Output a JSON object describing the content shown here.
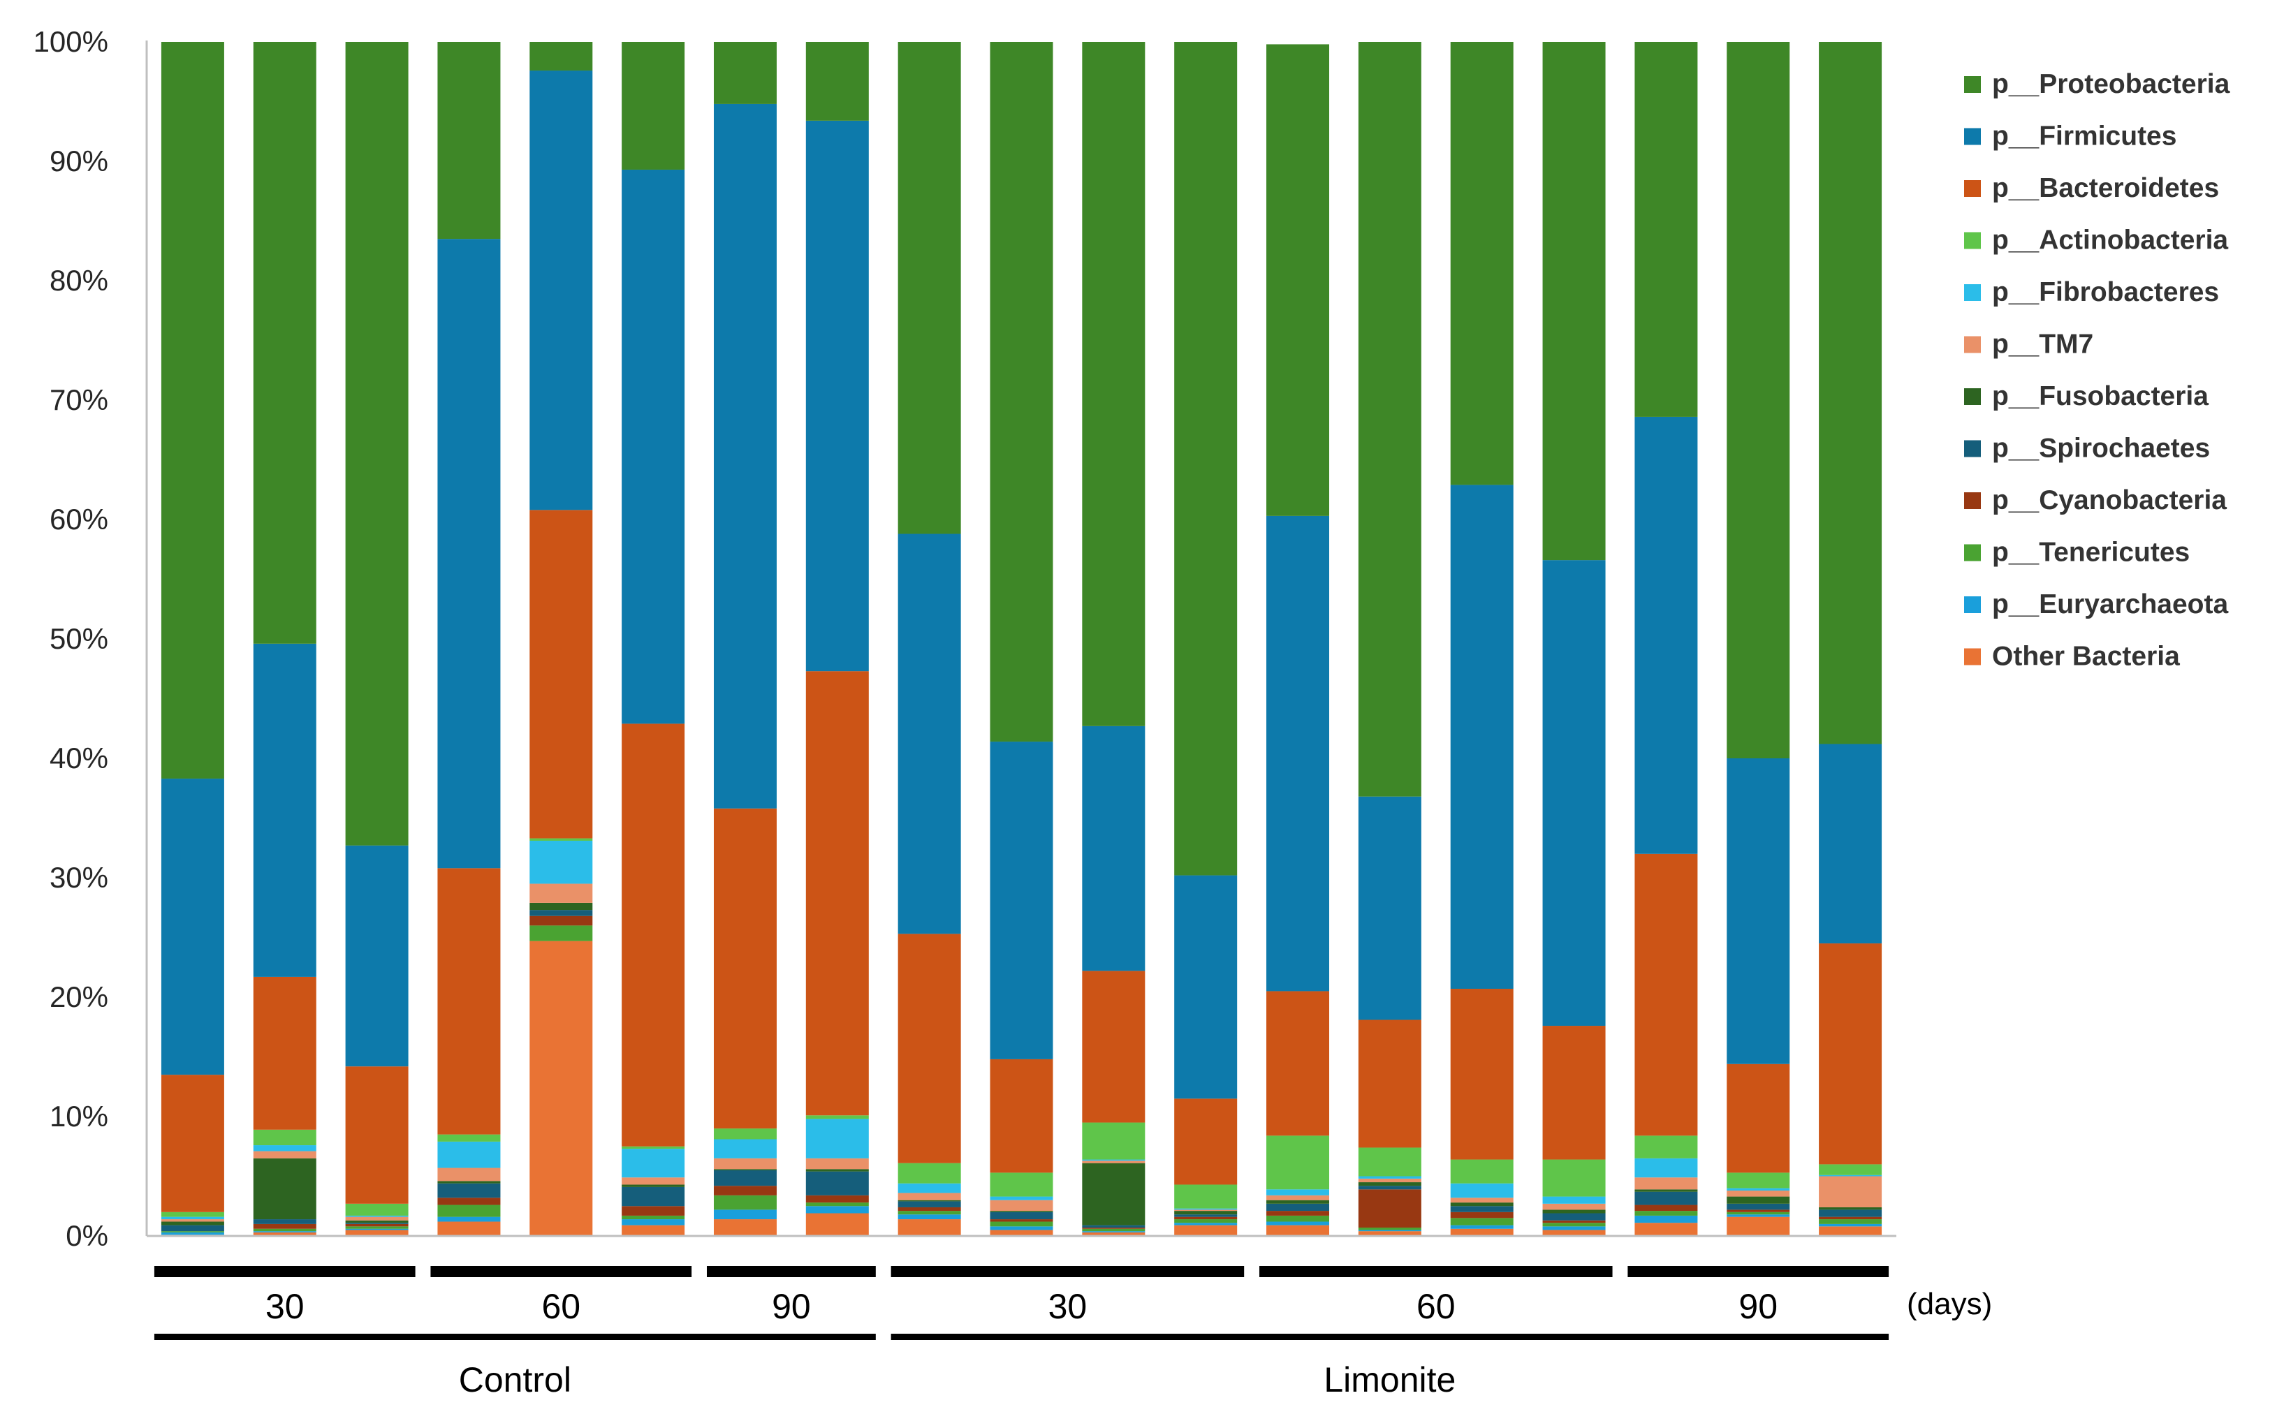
{
  "chart_data": {
    "type": "bar",
    "stacked": true,
    "normalized": true,
    "ylim": [
      0,
      100
    ],
    "yticks": [
      "0%",
      "10%",
      "20%",
      "30%",
      "40%",
      "50%",
      "60%",
      "70%",
      "80%",
      "90%",
      "100%"
    ],
    "legend_position": "right",
    "series": [
      {
        "name": "p__Proteobacteria",
        "color": "#3e8727"
      },
      {
        "name": "p__Firmicutes",
        "color": "#0d7aab"
      },
      {
        "name": "p__Bacteroidetes",
        "color": "#cc5416"
      },
      {
        "name": "p__Actinobacteria",
        "color": "#5fc54a"
      },
      {
        "name": "p__Fibrobacteres",
        "color": "#2bbde9"
      },
      {
        "name": "p__TM7",
        "color": "#ea9168"
      },
      {
        "name": "p__Fusobacteria",
        "color": "#2d6421"
      },
      {
        "name": "p__Spirochaetes",
        "color": "#155e7b"
      },
      {
        "name": "p__Cyanobacteria",
        "color": "#983812"
      },
      {
        "name": "p__Tenericutes",
        "color": "#4aa332"
      },
      {
        "name": "p__Euryarchaeota",
        "color": "#1a9fdb"
      },
      {
        "name": "Other Bacteria",
        "color": "#e97334"
      }
    ],
    "bars": [
      {
        "other": 0.1,
        "eury": 0.2,
        "tene": 0.1,
        "cyano": 0,
        "spiro": 0.5,
        "fuso": 0.3,
        "tm7": 0.2,
        "fibro": 0.2,
        "actino": 0.4,
        "bact": 11.5,
        "firm": 24.8,
        "proteo": 61.7
      },
      {
        "other": 0.3,
        "eury": 0.1,
        "tene": 0.2,
        "cyano": 0.4,
        "spiro": 0.4,
        "fuso": 5.1,
        "tm7": 0.6,
        "fibro": 0.5,
        "actino": 1.3,
        "bact": 12.8,
        "firm": 27.9,
        "proteo": 50.4
      },
      {
        "other": 0.5,
        "eury": 0.1,
        "tene": 0.2,
        "cyano": 0.2,
        "spiro": 0.1,
        "fuso": 0.2,
        "tm7": 0.3,
        "fibro": 0.1,
        "actino": 1,
        "bact": 11.5,
        "firm": 18.5,
        "proteo": 67.3
      },
      {
        "other": 1.2,
        "eury": 0.4,
        "tene": 1,
        "cyano": 0.6,
        "spiro": 1.2,
        "fuso": 0.2,
        "tm7": 1.1,
        "fibro": 2.2,
        "actino": 0.6,
        "bact": 22.3,
        "firm": 52.7,
        "proteo": 16.5
      },
      {
        "other": 24.7,
        "eury": 0,
        "tene": 1.3,
        "cyano": 0.8,
        "spiro": 0.5,
        "fuso": 0.6,
        "tm7": 1.6,
        "fibro": 3.6,
        "actino": 0.2,
        "bact": 27.5,
        "firm": 36.8,
        "proteo": 2.4
      },
      {
        "other": 0.9,
        "eury": 0.5,
        "tene": 0.3,
        "cyano": 0.8,
        "spiro": 1.6,
        "fuso": 0.2,
        "tm7": 0.6,
        "fibro": 2.4,
        "actino": 0.2,
        "bact": 35.4,
        "firm": 46.4,
        "proteo": 10.7
      },
      {
        "other": 1.4,
        "eury": 0.8,
        "tene": 1.2,
        "cyano": 0.8,
        "spiro": 1.3,
        "fuso": 0.1,
        "tm7": 0.9,
        "fibro": 1.6,
        "actino": 0.9,
        "bact": 26.8,
        "firm": 59,
        "proteo": 5.2
      },
      {
        "other": 1.9,
        "eury": 0.6,
        "tene": 0.3,
        "cyano": 0.6,
        "spiro": 2,
        "fuso": 0.2,
        "tm7": 0.9,
        "fibro": 3.3,
        "actino": 0.3,
        "bact": 37.2,
        "firm": 46.1,
        "proteo": 6.6
      },
      {
        "other": 1.4,
        "eury": 0.4,
        "tene": 0.3,
        "cyano": 0.3,
        "spiro": 0.5,
        "fuso": 0.1,
        "tm7": 0.6,
        "fibro": 0.8,
        "actino": 1.7,
        "bact": 19.2,
        "firm": 33.5,
        "proteo": 41.2
      },
      {
        "other": 0.5,
        "eury": 0.3,
        "tene": 0.4,
        "cyano": 0.2,
        "spiro": 0.6,
        "fuso": 0.1,
        "tm7": 0.9,
        "fibro": 0.3,
        "actino": 2,
        "bact": 9.5,
        "firm": 26.6,
        "proteo": 58.6
      },
      {
        "other": 0.3,
        "eury": 0.1,
        "tene": 0.2,
        "cyano": 0.1,
        "spiro": 0.2,
        "fuso": 5.2,
        "tm7": 0.2,
        "fibro": 0.1,
        "actino": 3.1,
        "bact": 12.7,
        "firm": 20.5,
        "proteo": 57.3
      },
      {
        "other": 0.9,
        "eury": 0.2,
        "tene": 0.3,
        "cyano": 0.2,
        "spiro": 0.2,
        "fuso": 0.3,
        "tm7": 0.1,
        "fibro": 0.1,
        "actino": 2,
        "bact": 7.2,
        "firm": 18.7,
        "proteo": 69.8
      },
      {
        "other": 0.9,
        "eury": 0.3,
        "tene": 0.5,
        "cyano": 0.4,
        "spiro": 0.6,
        "fuso": 0.3,
        "tm7": 0.4,
        "fibro": 0.5,
        "actino": 4.5,
        "bact": 12.1,
        "firm": 39.8,
        "proteo": 39.5
      },
      {
        "other": 0.4,
        "eury": 0.1,
        "tene": 0.2,
        "cyano": 3.2,
        "spiro": 0.3,
        "fuso": 0.3,
        "tm7": 0.3,
        "fibro": 0.2,
        "actino": 2.4,
        "bact": 10.7,
        "firm": 18.7,
        "proteo": 63.2
      },
      {
        "other": 0.6,
        "eury": 0.3,
        "tene": 0.6,
        "cyano": 0.5,
        "spiro": 0.5,
        "fuso": 0.3,
        "tm7": 0.4,
        "fibro": 1.2,
        "actino": 2,
        "bact": 14.3,
        "firm": 42.2,
        "proteo": 37.1
      },
      {
        "other": 0.5,
        "eury": 0.3,
        "tene": 0.3,
        "cyano": 0.2,
        "spiro": 0.6,
        "fuso": 0.3,
        "tm7": 0.5,
        "fibro": 0.6,
        "actino": 3.1,
        "bact": 11.2,
        "firm": 39,
        "proteo": 43.4
      },
      {
        "other": 1.1,
        "eury": 0.6,
        "tene": 0.4,
        "cyano": 0.5,
        "spiro": 1.1,
        "fuso": 0.2,
        "tm7": 1,
        "fibro": 1.6,
        "actino": 1.9,
        "bact": 23.6,
        "firm": 36.6,
        "proteo": 31.4
      },
      {
        "other": 1.6,
        "eury": 0.2,
        "tene": 0.2,
        "cyano": 0.2,
        "spiro": 0.5,
        "fuso": 0.6,
        "tm7": 0.5,
        "fibro": 0.2,
        "actino": 1.3,
        "bact": 9.1,
        "firm": 25.6,
        "proteo": 60
      },
      {
        "other": 0.8,
        "eury": 0.2,
        "tene": 0.4,
        "cyano": 0.2,
        "spiro": 0.6,
        "fuso": 0.2,
        "tm7": 2.6,
        "fibro": 0.1,
        "actino": 0.9,
        "bact": 18.5,
        "firm": 16.7,
        "proteo": 58.8
      }
    ],
    "series_keys": [
      "other",
      "eury",
      "tene",
      "cyano",
      "spiro",
      "fuso",
      "tm7",
      "fibro",
      "actino",
      "bact",
      "firm",
      "proteo"
    ],
    "time_groups": [
      {
        "label": "30",
        "first_bar": 0,
        "last_bar": 2
      },
      {
        "label": "60",
        "first_bar": 3,
        "last_bar": 5
      },
      {
        "label": "90",
        "first_bar": 6,
        "last_bar": 7
      },
      {
        "label": "30",
        "first_bar": 8,
        "last_bar": 11
      },
      {
        "label": "60",
        "first_bar": 12,
        "last_bar": 15
      },
      {
        "label": "90",
        "first_bar": 16,
        "last_bar": 18
      }
    ],
    "time_unit_label": "(days)",
    "treatment_groups": [
      {
        "label": "Control",
        "first_bar": 0,
        "last_bar": 7
      },
      {
        "label": "Limonite",
        "first_bar": 8,
        "last_bar": 18
      }
    ]
  }
}
